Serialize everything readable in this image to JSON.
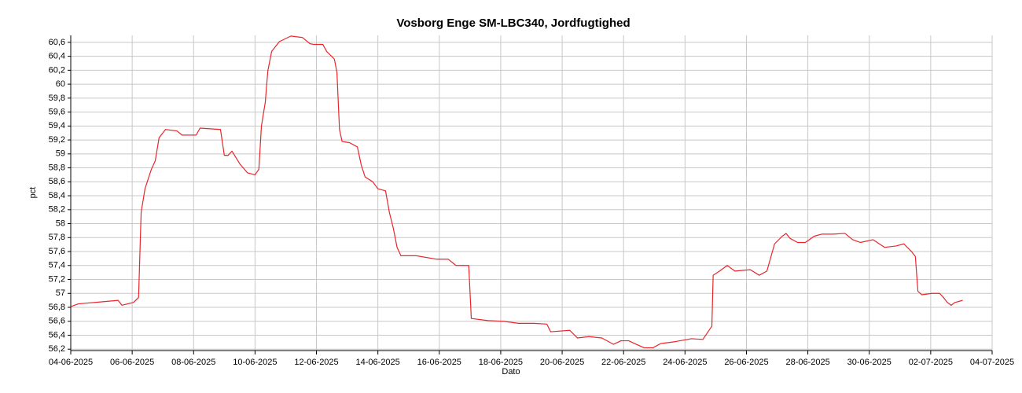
{
  "chart_data": {
    "type": "line",
    "title": "Vosborg Enge SM-LBC340, Jordfugtighed",
    "xlabel": "Dato",
    "ylabel": "pct",
    "grid": true,
    "xlim": [
      "2025-06-04T00:00",
      "2025-07-04T00:00"
    ],
    "xticks": [
      {
        "value": "2025-06-04T00:00",
        "label": "04-06-2025"
      },
      {
        "value": "2025-06-06T00:00",
        "label": "06-06-2025"
      },
      {
        "value": "2025-06-08T00:00",
        "label": "08-06-2025"
      },
      {
        "value": "2025-06-10T00:00",
        "label": "10-06-2025"
      },
      {
        "value": "2025-06-12T00:00",
        "label": "12-06-2025"
      },
      {
        "value": "2025-06-14T00:00",
        "label": "14-06-2025"
      },
      {
        "value": "2025-06-16T00:00",
        "label": "16-06-2025"
      },
      {
        "value": "2025-06-18T00:00",
        "label": "18-06-2025"
      },
      {
        "value": "2025-06-20T00:00",
        "label": "20-06-2025"
      },
      {
        "value": "2025-06-22T00:00",
        "label": "22-06-2025"
      },
      {
        "value": "2025-06-24T00:00",
        "label": "24-06-2025"
      },
      {
        "value": "2025-06-26T00:00",
        "label": "26-06-2025"
      },
      {
        "value": "2025-06-28T00:00",
        "label": "28-06-2025"
      },
      {
        "value": "2025-06-30T00:00",
        "label": "30-06-2025"
      },
      {
        "value": "2025-07-02T00:00",
        "label": "02-07-2025"
      },
      {
        "value": "2025-07-04T00:00",
        "label": "04-07-2025"
      }
    ],
    "ylim": [
      56.18,
      60.7
    ],
    "yticks": [
      {
        "value": 56.2,
        "label": "56,2"
      },
      {
        "value": 56.4,
        "label": "56,4"
      },
      {
        "value": 56.6,
        "label": "56,6"
      },
      {
        "value": 56.8,
        "label": "56,8"
      },
      57,
      {
        "value": 57.2,
        "label": "57,2"
      },
      {
        "value": 57.4,
        "label": "57,4"
      },
      {
        "value": 57.6,
        "label": "57,6"
      },
      {
        "value": 57.8,
        "label": "57,8"
      },
      58,
      {
        "value": 58.2,
        "label": "58,2"
      },
      {
        "value": 58.4,
        "label": "58,4"
      },
      {
        "value": 58.6,
        "label": "58,6"
      },
      {
        "value": 58.8,
        "label": "58,8"
      },
      59,
      {
        "value": 59.2,
        "label": "59,2"
      },
      {
        "value": 59.4,
        "label": "59,4"
      },
      {
        "value": 59.6,
        "label": "59,6"
      },
      {
        "value": 59.8,
        "label": "59,8"
      },
      60,
      {
        "value": 60.2,
        "label": "60,2"
      },
      {
        "value": 60.4,
        "label": "60,4"
      },
      {
        "value": 60.6,
        "label": "60,6"
      }
    ],
    "x": [
      "2025-06-04T00:00",
      "2025-06-04T06:00",
      "2025-06-05T01:00",
      "2025-06-05T13:00",
      "2025-06-05T16:00",
      "2025-06-06T01:00",
      "2025-06-06T05:00",
      "2025-06-06T07:00",
      "2025-06-06T10:00",
      "2025-06-06T15:00",
      "2025-06-06T18:00",
      "2025-06-06T21:00",
      "2025-06-07T02:00",
      "2025-06-07T11:00",
      "2025-06-07T15:00",
      "2025-06-08T02:00",
      "2025-06-08T05:00",
      "2025-06-08T21:00",
      "2025-06-09T00:00",
      "2025-06-09T03:00",
      "2025-06-09T06:00",
      "2025-06-09T12:00",
      "2025-06-09T18:00",
      "2025-06-10T00:00",
      "2025-06-10T03:00",
      "2025-06-10T05:00",
      "2025-06-10T08:00",
      "2025-06-10T10:00",
      "2025-06-10T13:00",
      "2025-06-10T19:00",
      "2025-06-11T04:00",
      "2025-06-11T13:00",
      "2025-06-11T19:00",
      "2025-06-11T22:00",
      "2025-06-12T05:00",
      "2025-06-12T08:00",
      "2025-06-12T14:00",
      "2025-06-12T16:00",
      "2025-06-12T18:00",
      "2025-06-12T20:00",
      "2025-06-13T02:00",
      "2025-06-13T08:00",
      "2025-06-13T11:00",
      "2025-06-13T14:00",
      "2025-06-13T20:00",
      "2025-06-14T00:00",
      "2025-06-14T06:00",
      "2025-06-14T09:00",
      "2025-06-14T12:00",
      "2025-06-14T15:00",
      "2025-06-14T18:00",
      "2025-06-15T06:00",
      "2025-06-15T22:00",
      "2025-06-16T07:00",
      "2025-06-16T13:00",
      "2025-06-16T23:00",
      "2025-06-17T01:00",
      "2025-06-17T14:00",
      "2025-06-18T02:00",
      "2025-06-18T14:00",
      "2025-06-19T02:00",
      "2025-06-19T12:00",
      "2025-06-19T15:00",
      "2025-06-20T06:00",
      "2025-06-20T12:00",
      "2025-06-20T21:00",
      "2025-06-21T07:00",
      "2025-06-21T16:00",
      "2025-06-21T22:00",
      "2025-06-22T04:00",
      "2025-06-22T10:00",
      "2025-06-22T16:00",
      "2025-06-22T23:00",
      "2025-06-23T05:00",
      "2025-06-23T17:00",
      "2025-06-24T05:00",
      "2025-06-24T14:00",
      "2025-06-24T18:00",
      "2025-06-24T21:00",
      "2025-06-24T22:00",
      "2025-06-25T03:00",
      "2025-06-25T09:00",
      "2025-06-25T15:00",
      "2025-06-26T03:00",
      "2025-06-26T10:00",
      "2025-06-26T16:00",
      "2025-06-26T22:00",
      "2025-06-27T04:00",
      "2025-06-27T07:00",
      "2025-06-27T10:00",
      "2025-06-27T16:00",
      "2025-06-27T22:00",
      "2025-06-28T05:00",
      "2025-06-28T11:00",
      "2025-06-28T20:00",
      "2025-06-29T05:00",
      "2025-06-29T11:00",
      "2025-06-29T17:00",
      "2025-06-30T03:00",
      "2025-06-30T12:00",
      "2025-06-30T21:00",
      "2025-07-01T03:00",
      "2025-07-01T09:00",
      "2025-07-01T12:00",
      "2025-07-01T14:00",
      "2025-07-01T17:00",
      "2025-07-02T01:00",
      "2025-07-02T07:00",
      "2025-07-02T10:00",
      "2025-07-02T13:00",
      "2025-07-02T16:00",
      "2025-07-02T19:00",
      "2025-07-03T01:00"
    ],
    "series": [
      {
        "color": "#e8262b",
        "values": [
          56.81,
          56.85,
          56.88,
          56.9,
          56.83,
          56.87,
          56.94,
          58.16,
          58.5,
          58.78,
          58.9,
          59.23,
          59.35,
          59.33,
          59.27,
          59.27,
          59.37,
          59.35,
          58.98,
          58.98,
          59.04,
          58.86,
          58.73,
          58.7,
          58.78,
          59.4,
          59.74,
          60.19,
          60.47,
          60.61,
          60.69,
          60.67,
          60.58,
          60.57,
          60.57,
          60.47,
          60.36,
          60.17,
          59.35,
          59.18,
          59.16,
          59.1,
          58.84,
          58.67,
          58.6,
          58.5,
          58.47,
          58.16,
          57.94,
          57.66,
          57.54,
          57.54,
          57.49,
          57.49,
          57.4,
          57.4,
          56.64,
          56.61,
          56.6,
          56.57,
          56.57,
          56.56,
          56.45,
          56.47,
          56.36,
          56.38,
          56.36,
          56.27,
          56.32,
          56.32,
          56.27,
          56.22,
          56.22,
          56.28,
          56.31,
          56.35,
          56.34,
          56.45,
          56.53,
          57.26,
          57.32,
          57.4,
          57.32,
          57.34,
          57.26,
          57.32,
          57.71,
          57.82,
          57.86,
          57.79,
          57.73,
          57.73,
          57.82,
          57.85,
          57.85,
          57.86,
          57.77,
          57.73,
          57.77,
          57.66,
          57.68,
          57.71,
          57.6,
          57.53,
          57.03,
          56.98,
          57.0,
          57.0,
          56.94,
          56.87,
          56.83,
          56.87,
          56.9
        ]
      }
    ]
  }
}
